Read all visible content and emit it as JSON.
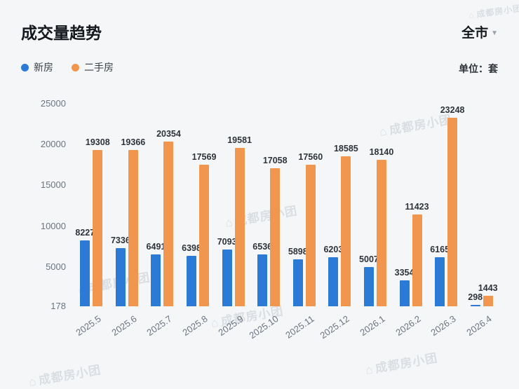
{
  "header": {
    "title": "成交量趋势",
    "region": "全市",
    "unit": "单位：套"
  },
  "legend": [
    {
      "label": "新房",
      "color": "#2b7bd6"
    },
    {
      "label": "二手房",
      "color": "#f0964f"
    }
  ],
  "icons": {
    "caret": "▼",
    "watermark_logo": "⌂"
  },
  "watermark": "成都房小团",
  "chart_data": {
    "type": "bar",
    "title": "成交量趋势",
    "unit": "套",
    "categories": [
      "2025.5",
      "2025.6",
      "2025.7",
      "2025.8",
      "2025.9",
      "2025.10",
      "2025.11",
      "2025.12",
      "2026.1",
      "2026.2",
      "2026.3",
      "2026.4"
    ],
    "series": [
      {
        "name": "新房",
        "color": "#2b7bd6",
        "values": [
          8227,
          7336,
          6491,
          6398,
          7093,
          6536,
          5898,
          6203,
          5007,
          3354,
          6165,
          298
        ]
      },
      {
        "name": "二手房",
        "color": "#f0964f",
        "values": [
          19308,
          19366,
          20354,
          17569,
          19581,
          17058,
          17560,
          18585,
          18140,
          11423,
          23248,
          1443
        ]
      }
    ],
    "y_ticks": [
      178,
      5000,
      10000,
      15000,
      20000,
      25000
    ],
    "ylim": [
      178,
      25000
    ],
    "grid": false,
    "legend_position": "top-left"
  }
}
